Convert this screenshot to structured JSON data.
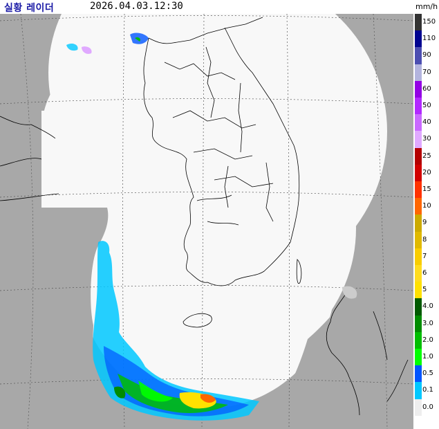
{
  "header": {
    "title": "실황 레이더",
    "timestamp": "2026.04.03.12:30",
    "unit": "mm/h"
  },
  "legend": {
    "items": [
      {
        "label": "150",
        "color": "#333333"
      },
      {
        "label": "110",
        "color": "#000390"
      },
      {
        "label": "90",
        "color": "#4c4eb1"
      },
      {
        "label": "70",
        "color": "#b3b4de"
      },
      {
        "label": "60",
        "color": "#9300e4"
      },
      {
        "label": "50",
        "color": "#b229ff"
      },
      {
        "label": "40",
        "color": "#c969ff"
      },
      {
        "label": "30",
        "color": "#e0a9ff"
      },
      {
        "label": "25",
        "color": "#b40000"
      },
      {
        "label": "20",
        "color": "#d20000"
      },
      {
        "label": "15",
        "color": "#ff3200"
      },
      {
        "label": "10",
        "color": "#ff6600"
      },
      {
        "label": "9",
        "color": "#ccaa00"
      },
      {
        "label": "8",
        "color": "#e0b900"
      },
      {
        "label": "7",
        "color": "#f9cd00"
      },
      {
        "label": "6",
        "color": "#ffdc1f"
      },
      {
        "label": "5",
        "color": "#ffe100"
      },
      {
        "label": "4.0",
        "color": "#005a00"
      },
      {
        "label": "3.0",
        "color": "#008c00"
      },
      {
        "label": "2.0",
        "color": "#00be00"
      },
      {
        "label": "1.0",
        "color": "#00ff00"
      },
      {
        "label": "0.5",
        "color": "#0055ff"
      },
      {
        "label": "0.1",
        "color": "#00c8ff"
      },
      {
        "label": "0.0",
        "color": "#eeeeee"
      }
    ]
  },
  "map": {
    "background_color": "#a8a8a8",
    "coverage_color": "#f8f8f8",
    "grid": true
  }
}
